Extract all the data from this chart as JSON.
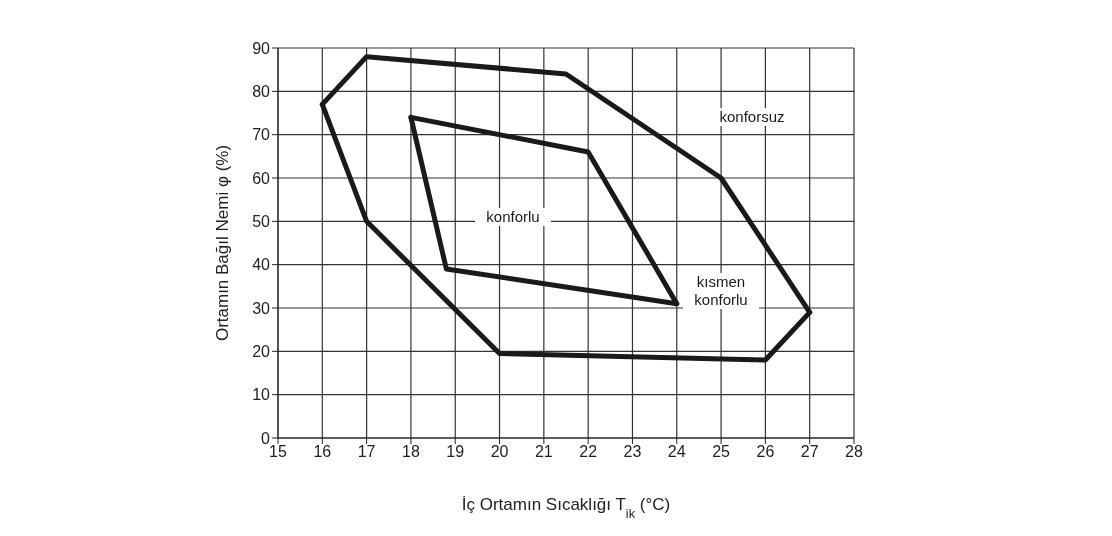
{
  "chart_data": {
    "type": "line",
    "xlabel": "İç Ortamın Sıcaklığı T$_{ik}$ (°C)",
    "ylabel": "Ortamın Bağıl Nemi φ (%)",
    "series": [
      {
        "color": "#1a1a1a",
        "x": [
          16,
          17,
          21.5,
          25,
          27
        ],
        "values": [
          77,
          88,
          84,
          60,
          29
        ]
      },
      {
        "color": "#1a1a1a",
        "x": [
          16,
          17,
          20,
          26,
          27
        ],
        "values": [
          77,
          50,
          19.5,
          18,
          29
        ]
      },
      {
        "color": "#1a1a1a",
        "x": [
          18,
          22,
          24
        ],
        "values": [
          74,
          66,
          31
        ]
      },
      {
        "color": "#1a1a1a",
        "x": [
          18,
          18.8,
          24
        ],
        "values": [
          74,
          39,
          31
        ]
      }
    ],
    "annotations": [
      "konforsuz",
      "konforlu",
      "kısmen konforlu"
    ],
    "xlim": [
      15,
      28
    ],
    "ylim": [
      0,
      90
    ],
    "xticks": [
      15,
      16,
      17,
      18,
      19,
      20,
      21,
      22,
      23,
      24,
      25,
      26,
      27,
      28
    ],
    "yticks": [
      0,
      10,
      20,
      30,
      40,
      50,
      60,
      70,
      80,
      90
    ],
    "grid": true,
    "legend": false,
    "marker": "none",
    "line_style": "solid"
  }
}
